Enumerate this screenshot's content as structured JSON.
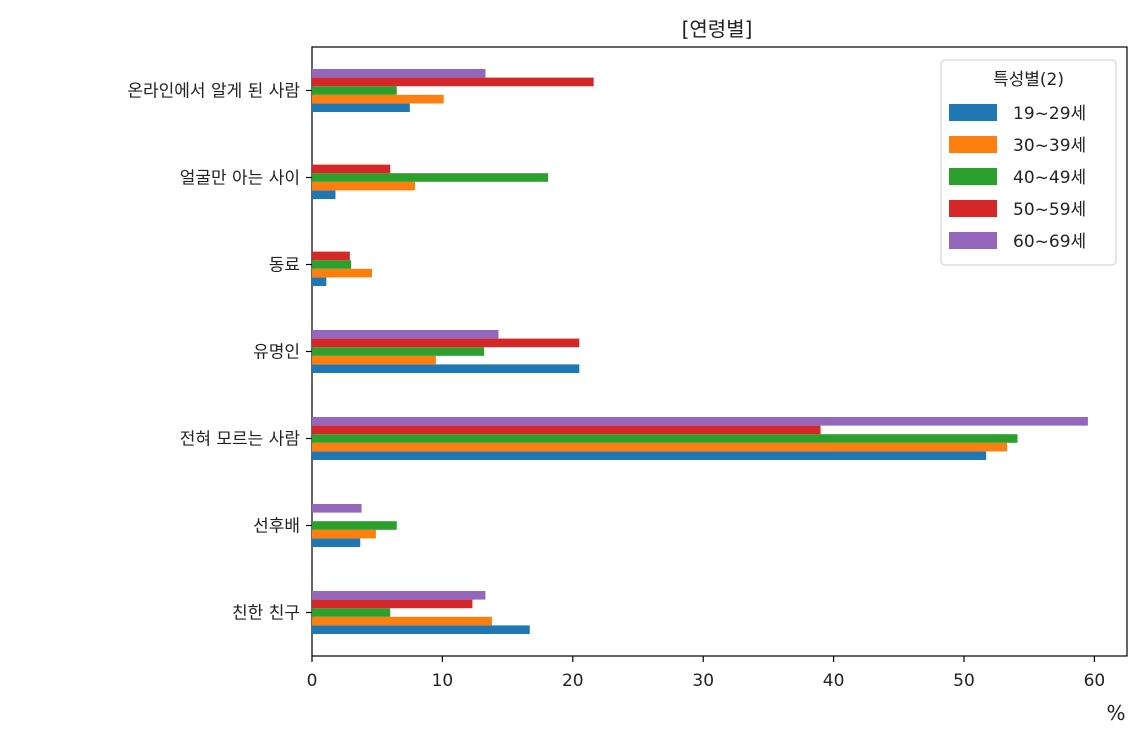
{
  "chart_data": {
    "type": "bar",
    "orientation": "horizontal",
    "title": "[연령별]",
    "xlabel": "%",
    "ylabel": "",
    "xlim": [
      0,
      62.5
    ],
    "xticks": [
      0,
      10,
      20,
      30,
      40,
      50,
      60
    ],
    "categories": [
      "온라인에서 알게 된 사람",
      "얼굴만 아는 사이",
      "동료",
      "유명인",
      "전혀 모르는 사람",
      "선후배",
      "친한 친구"
    ],
    "legend": {
      "title": "특성별(2)",
      "position": "top-right"
    },
    "grid": false,
    "series": [
      {
        "name": "19~29세",
        "color": "#1f77b4",
        "values": [
          7.5,
          1.8,
          1.1,
          20.5,
          51.7,
          3.7,
          16.7
        ]
      },
      {
        "name": "30~39세",
        "color": "#ff7f0e",
        "values": [
          10.1,
          7.9,
          4.6,
          9.5,
          53.3,
          4.9,
          13.8
        ]
      },
      {
        "name": "40~49세",
        "color": "#2ca02c",
        "values": [
          6.5,
          18.1,
          3.0,
          13.2,
          54.1,
          6.5,
          6.0
        ]
      },
      {
        "name": "50~59세",
        "color": "#d62728",
        "values": [
          21.6,
          6.0,
          2.9,
          20.5,
          39.0,
          0,
          12.3
        ]
      },
      {
        "name": "60~69세",
        "color": "#9467bd",
        "values": [
          13.3,
          0,
          0,
          14.3,
          59.5,
          3.8,
          13.3
        ]
      }
    ]
  }
}
